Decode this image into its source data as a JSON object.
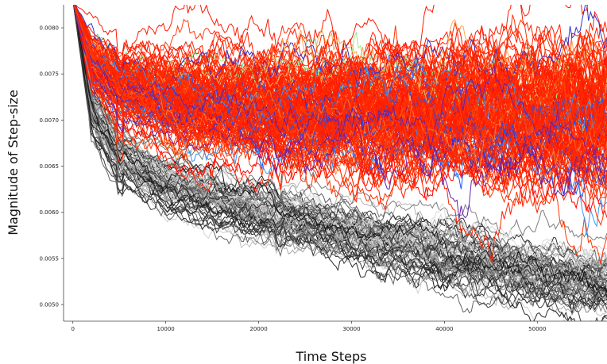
{
  "chart_data": {
    "type": "line",
    "xlabel": "Time Steps",
    "ylabel": "Magnitude of Step-size",
    "xlim": [
      -1000,
      57500
    ],
    "ylim": [
      0.00482,
      0.00825
    ],
    "x_ticks": [
      0,
      10000,
      20000,
      30000,
      40000,
      50000
    ],
    "y_ticks": [
      0.005,
      0.0055,
      0.006,
      0.0065,
      0.007,
      0.0075,
      0.008
    ],
    "x_tick_labels": [
      "0",
      "10000",
      "20000",
      "30000",
      "40000",
      "50000"
    ],
    "y_tick_labels": [
      "0.0050",
      "0.0055",
      "0.0060",
      "0.0065",
      "0.0070",
      "0.0075",
      "0.0080"
    ],
    "grid": false,
    "legend": "none",
    "series_groups": [
      {
        "group": "colored",
        "count": 160,
        "colormap": "red-dominant rainbow (red, orange, green, cyan, blue, purple)",
        "x": [
          0,
          2000,
          5000,
          10000,
          20000,
          30000,
          40000,
          50000,
          57000
        ],
        "values": [
          0.0083,
          0.00765,
          0.0074,
          0.00725,
          0.00715,
          0.0071,
          0.0071,
          0.00705,
          0.00705
        ],
        "spread": [
          0.0,
          0.00015,
          0.0002,
          0.00025,
          0.0003,
          0.00035,
          0.00038,
          0.0004,
          0.00045
        ]
      },
      {
        "group": "grayscale",
        "count": 70,
        "colormap": "black to light gray",
        "x": [
          0,
          2000,
          5000,
          10000,
          20000,
          30000,
          40000,
          50000,
          57000
        ],
        "values": [
          0.0083,
          0.0071,
          0.0066,
          0.0063,
          0.006,
          0.00575,
          0.00555,
          0.0053,
          0.0052
        ],
        "spread": [
          0.0,
          0.00015,
          0.00015,
          0.00015,
          0.00017,
          0.00018,
          0.0002,
          0.0002,
          0.0002
        ]
      }
    ]
  }
}
